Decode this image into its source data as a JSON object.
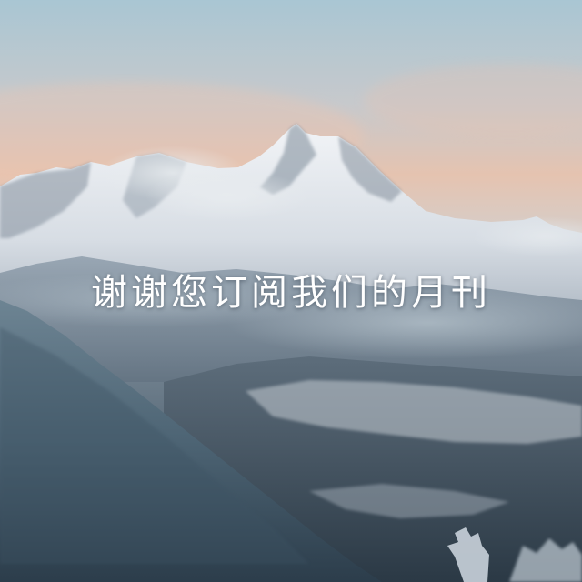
{
  "headline": "谢谢您订阅我们的月刊"
}
